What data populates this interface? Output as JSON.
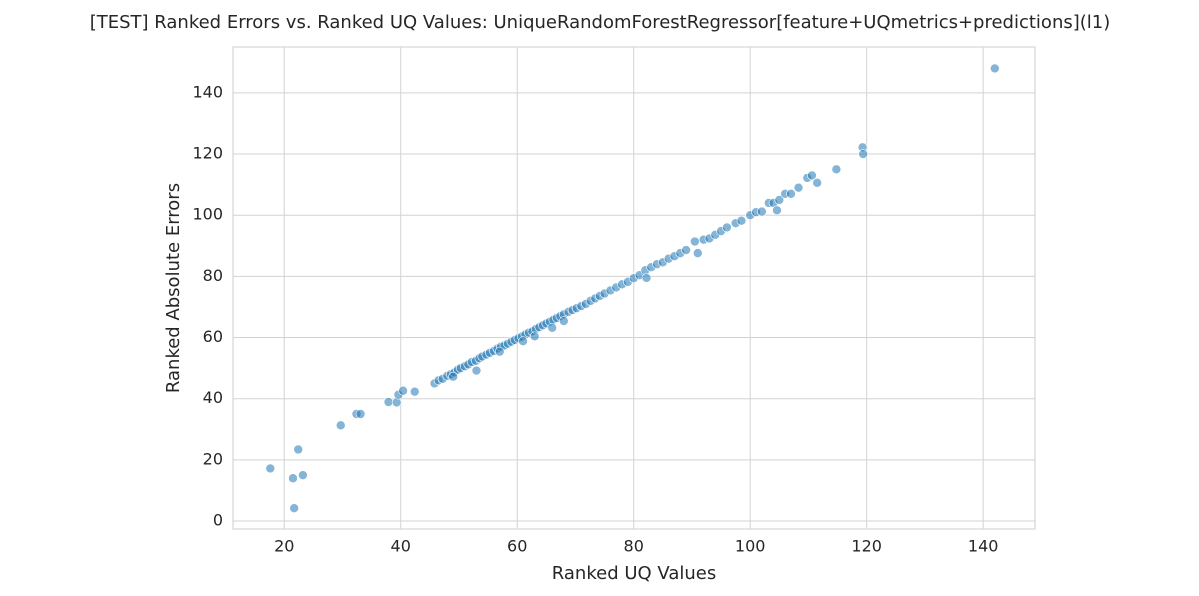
{
  "chart_data": {
    "type": "scatter",
    "title": "[TEST] Ranked Errors vs. Ranked UQ Values: UniqueRandomForestRegressor[feature+UQmetrics+predictions](l1)",
    "xlabel": "Ranked UQ Values",
    "ylabel": "Ranked Absolute Errors",
    "x": [
      17.6,
      21.5,
      21.7,
      22.4,
      23.2,
      29.7,
      32.4,
      33.1,
      37.9,
      39.3,
      39.6,
      40.4,
      42.4,
      45.8,
      46.5,
      47.2,
      48,
      48.6,
      49.2,
      49.8,
      50.3,
      51,
      51.6,
      52.2,
      52.9,
      53.5,
      54,
      54.7,
      55.3,
      56,
      56.6,
      57.2,
      57.8,
      58.4,
      59,
      59.6,
      60.2,
      60.8,
      61.4,
      62,
      62.6,
      63.2,
      63.8,
      64.4,
      65,
      65.6,
      66.2,
      66.8,
      67.4,
      68,
      68.8,
      69.5,
      70.2,
      71,
      71.8,
      72.6,
      73.4,
      74.2,
      75,
      76,
      77,
      78,
      79,
      80,
      81,
      82,
      82.2,
      83,
      84,
      85,
      86,
      87,
      88,
      89,
      90.5,
      91,
      92,
      93,
      94,
      95,
      96,
      97.5,
      98.5,
      100,
      101,
      102,
      103.2,
      104,
      104.6,
      105,
      106,
      107,
      108.3,
      109.8,
      110.6,
      111.5,
      114.8,
      119.3,
      119.4,
      142,
      53,
      57,
      63,
      66,
      49,
      61,
      68
    ],
    "values": [
      17.2,
      14,
      4.2,
      23.4,
      15,
      31.3,
      35,
      35,
      38.9,
      38.8,
      41.3,
      42.6,
      42.3,
      45,
      46,
      46.5,
      47.5,
      48,
      48.6,
      49.5,
      50,
      50.6,
      51.2,
      52,
      52.4,
      53.2,
      53.8,
      54.4,
      55,
      55.6,
      56.4,
      57,
      57.4,
      58,
      58.6,
      59.2,
      59.8,
      60.3,
      61,
      61.6,
      62,
      62.8,
      63.4,
      64,
      64.6,
      65.2,
      65.8,
      66.4,
      67,
      67.6,
      68.4,
      69,
      69.6,
      70.3,
      71,
      72,
      72.8,
      73.6,
      74.4,
      75.4,
      76.4,
      77.4,
      78.2,
      79.4,
      80.4,
      82,
      79.5,
      83,
      84,
      84.6,
      85.8,
      86.6,
      87.6,
      88.6,
      91.4,
      87.6,
      92,
      92.4,
      93.6,
      94.8,
      96,
      97.4,
      98.2,
      100,
      101,
      101.2,
      104,
      104,
      101.6,
      105,
      107,
      107,
      109,
      112.2,
      113,
      110.6,
      115,
      122.2,
      120,
      148,
      49.2,
      55.4,
      60.4,
      63.2,
      47.2,
      58.8,
      65.4
    ],
    "color": "#1f77b4",
    "xlim": [
      11.2,
      148.9
    ],
    "ylim": [
      -2.6,
      155
    ],
    "xticks": [
      20,
      40,
      60,
      80,
      100,
      120,
      140
    ],
    "yticks": [
      0,
      20,
      40,
      60,
      80,
      100,
      120,
      140
    ],
    "grid": true
  }
}
